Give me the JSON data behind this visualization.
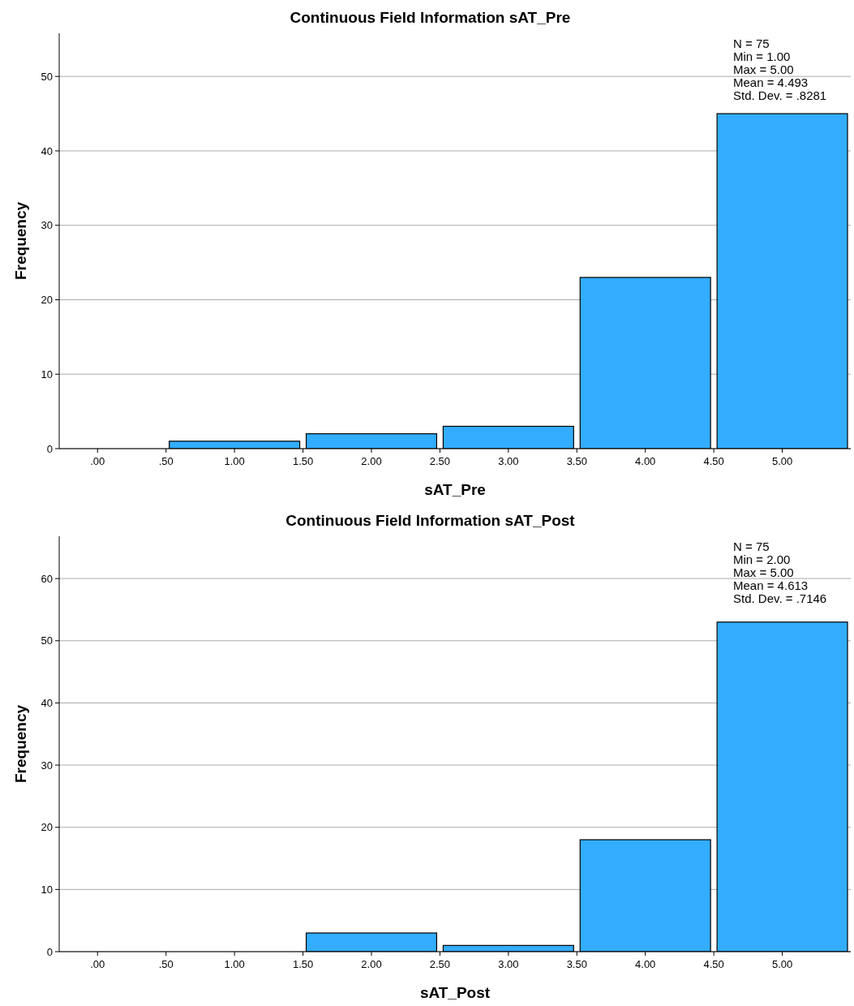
{
  "chart_data": [
    {
      "type": "histogram",
      "title": "Continuous Field Information sAT_Pre",
      "xlabel": "sAT_Pre",
      "ylabel": "Frequency",
      "bins": [
        0.5,
        1.5,
        2.5,
        3.5,
        4.5,
        5.5
      ],
      "values": [
        1,
        2,
        3,
        23,
        45
      ],
      "color": "#33adff",
      "xlim": [
        -0.28,
        5.5
      ],
      "xticks": [
        {
          "value": 0,
          "label": ".00"
        },
        {
          "value": 0.5,
          "label": ".50"
        },
        {
          "value": 1,
          "label": "1.00"
        },
        {
          "value": 1.5,
          "label": "1.50"
        },
        {
          "value": 2,
          "label": "2.00"
        },
        {
          "value": 2.5,
          "label": "2.50"
        },
        {
          "value": 3,
          "label": "3.00"
        },
        {
          "value": 3.5,
          "label": "3.50"
        },
        {
          "value": 4,
          "label": "4.00"
        },
        {
          "value": 4.5,
          "label": "4.50"
        },
        {
          "value": 5,
          "label": "5.00"
        }
      ],
      "ylim": [
        0,
        55.8
      ],
      "yticks": [
        0,
        10,
        20,
        30,
        40,
        50
      ],
      "grid": "y",
      "annotations": [
        "N = 75",
        "Min = 1.00",
        "Max = 5.00",
        "Mean = 4.493",
        "Std. Dev. = .8281"
      ]
    },
    {
      "type": "histogram",
      "title": "Continuous Field Information sAT_Post",
      "xlabel": "sAT_Post",
      "ylabel": "Frequency",
      "bins": [
        0.5,
        1.5,
        2.5,
        3.5,
        4.5,
        5.5
      ],
      "values": [
        0,
        3,
        1,
        18,
        53
      ],
      "color": "#33adff",
      "xlim": [
        -0.28,
        5.5
      ],
      "xticks": [
        {
          "value": 0,
          "label": ".00"
        },
        {
          "value": 0.5,
          "label": ".50"
        },
        {
          "value": 1,
          "label": "1.00"
        },
        {
          "value": 1.5,
          "label": "1.50"
        },
        {
          "value": 2,
          "label": "2.00"
        },
        {
          "value": 2.5,
          "label": "2.50"
        },
        {
          "value": 3,
          "label": "3.00"
        },
        {
          "value": 3.5,
          "label": "3.50"
        },
        {
          "value": 4,
          "label": "4.00"
        },
        {
          "value": 4.5,
          "label": "4.50"
        },
        {
          "value": 5,
          "label": "5.00"
        }
      ],
      "ylim": [
        0,
        66.8
      ],
      "yticks": [
        0,
        10,
        20,
        30,
        40,
        50,
        60
      ],
      "grid": "y",
      "annotations": [
        "N = 75",
        "Min = 2.00",
        "Max = 5.00",
        "Mean = 4.613",
        "Std. Dev. = .7146"
      ]
    }
  ]
}
